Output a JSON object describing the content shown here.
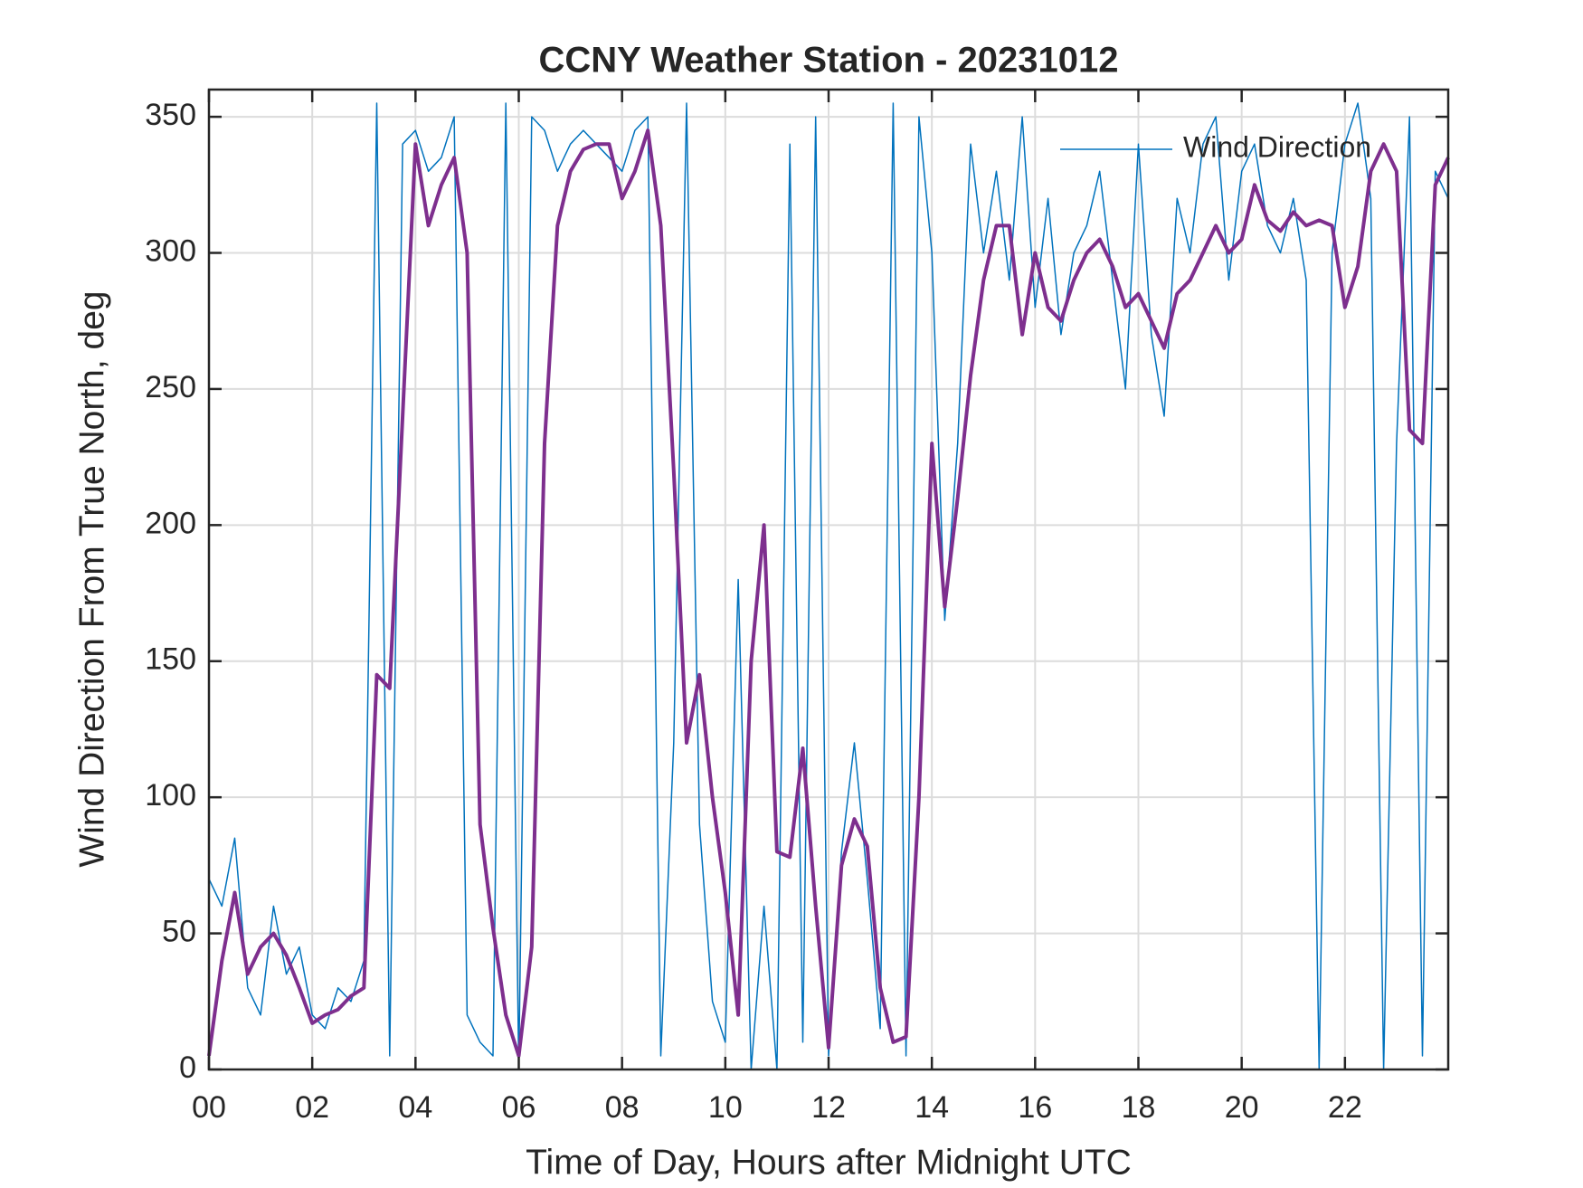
{
  "chart_data": {
    "type": "line",
    "title": "CCNY Weather Station - 20231012",
    "xlabel": "Time of Day, Hours after Midnight UTC",
    "ylabel": "Wind Direction From True North, deg",
    "x": [
      0,
      0.25,
      0.5,
      0.75,
      1,
      1.25,
      1.5,
      1.75,
      2,
      2.25,
      2.5,
      2.75,
      3,
      3.25,
      3.5,
      3.75,
      4,
      4.25,
      4.5,
      4.75,
      5,
      5.25,
      5.5,
      5.75,
      6,
      6.25,
      6.5,
      6.75,
      7,
      7.25,
      7.5,
      7.75,
      8,
      8.25,
      8.5,
      8.75,
      9,
      9.25,
      9.5,
      9.75,
      10,
      10.25,
      10.5,
      10.75,
      11,
      11.25,
      11.5,
      11.75,
      12,
      12.25,
      12.5,
      12.75,
      13,
      13.25,
      13.5,
      13.75,
      14,
      14.25,
      14.5,
      14.75,
      15,
      15.25,
      15.5,
      15.75,
      16,
      16.25,
      16.5,
      16.75,
      17,
      17.25,
      17.5,
      17.75,
      18,
      18.25,
      18.5,
      18.75,
      19,
      19.25,
      19.5,
      19.75,
      20,
      20.25,
      20.5,
      20.75,
      21,
      21.25,
      21.5,
      21.75,
      22,
      22.25,
      22.5,
      22.75,
      23,
      23.25,
      23.5,
      23.75,
      24
    ],
    "series": [
      {
        "name": "Wind Direction",
        "color": "#0072bd",
        "width": 1.5,
        "values": [
          70,
          60,
          85,
          30,
          20,
          60,
          35,
          45,
          20,
          15,
          30,
          25,
          40,
          355,
          5,
          340,
          345,
          330,
          335,
          350,
          20,
          10,
          5,
          355,
          0,
          350,
          345,
          330,
          340,
          345,
          340,
          335,
          330,
          345,
          350,
          5,
          120,
          355,
          90,
          25,
          10,
          180,
          0,
          60,
          0,
          340,
          10,
          350,
          5,
          80,
          120,
          70,
          15,
          355,
          5,
          350,
          300,
          165,
          230,
          340,
          300,
          330,
          290,
          350,
          280,
          320,
          270,
          300,
          310,
          330,
          290,
          250,
          340,
          270,
          240,
          320,
          300,
          340,
          350,
          290,
          330,
          340,
          310,
          300,
          320,
          290,
          0,
          300,
          340,
          355,
          320,
          0,
          230,
          350,
          5,
          330,
          320
        ]
      },
      {
        "color": "#7e2f8e",
        "width": 4,
        "values": [
          5,
          40,
          65,
          35,
          45,
          50,
          42,
          30,
          17,
          20,
          22,
          27,
          30,
          145,
          140,
          240,
          340,
          310,
          325,
          335,
          300,
          90,
          52,
          20,
          5,
          45,
          230,
          310,
          330,
          338,
          340,
          340,
          320,
          330,
          345,
          310,
          220,
          120,
          145,
          100,
          65,
          20,
          150,
          200,
          80,
          78,
          118,
          60,
          8,
          75,
          92,
          82,
          30,
          10,
          12,
          100,
          230,
          170,
          210,
          255,
          290,
          310,
          310,
          270,
          300,
          280,
          275,
          290,
          300,
          305,
          295,
          280,
          285,
          275,
          265,
          285,
          290,
          300,
          310,
          300,
          305,
          325,
          312,
          308,
          315,
          310,
          312,
          310,
          280,
          295,
          330,
          340,
          330,
          235,
          230,
          325,
          335
        ]
      }
    ],
    "xlim": [
      0,
      24
    ],
    "xticks": [
      {
        "value": 0,
        "label": "00"
      },
      {
        "value": 2,
        "label": "02"
      },
      {
        "value": 4,
        "label": "04"
      },
      {
        "value": 6,
        "label": "06"
      },
      {
        "value": 8,
        "label": "08"
      },
      10,
      12,
      14,
      16,
      18,
      20,
      22
    ],
    "ylim": [
      0,
      360
    ],
    "yticks": [
      0,
      50,
      100,
      150,
      200,
      250,
      300,
      350
    ],
    "grid": true,
    "legend": "northeast"
  }
}
